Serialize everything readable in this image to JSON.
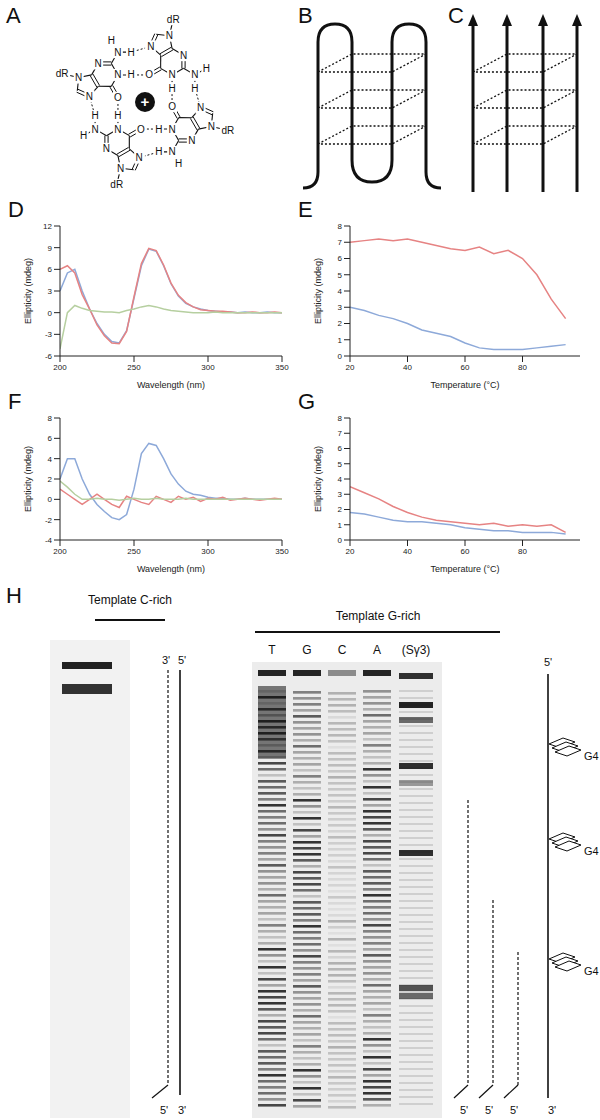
{
  "panels": {
    "A": {
      "label": "A",
      "quartet": {
        "base_atoms": [
          "N",
          "N",
          "N",
          "N",
          "O",
          "N",
          "H",
          "H",
          "H",
          "dR"
        ],
        "cation": "+"
      }
    },
    "B": {
      "label": "B"
    },
    "C": {
      "label": "C"
    },
    "H": {
      "label": "H",
      "c_rich": {
        "title": "Template C-rich",
        "top_labels": [
          "3'",
          "5'"
        ],
        "bottom_labels": [
          "5'",
          "3'"
        ]
      },
      "g_rich": {
        "title": "Template G-rich",
        "lanes": [
          "T",
          "G",
          "C",
          "A",
          "(Sγ3)"
        ],
        "top_label": "5'",
        "bottom_labels": [
          "5'",
          "5'",
          "5'",
          "3'"
        ],
        "g4_labels": [
          "G4",
          "G4",
          "G4"
        ]
      }
    }
  },
  "chart_data": [
    {
      "panel_label": "D",
      "type": "line",
      "x_label": "Wavelength (nm)",
      "y_label": "Ellipticity (mdeg)",
      "x": [
        200,
        205,
        210,
        215,
        220,
        225,
        230,
        235,
        240,
        245,
        250,
        255,
        260,
        265,
        270,
        275,
        280,
        285,
        290,
        295,
        300,
        305,
        310,
        315,
        320,
        325,
        330,
        335,
        340,
        345,
        350
      ],
      "series": [
        {
          "color": "#8da9d9",
          "values": [
            3,
            5.5,
            6,
            3,
            0.5,
            -1.5,
            -3,
            -4,
            -4.2,
            -2.5,
            2,
            6.5,
            8.8,
            8.5,
            6.5,
            4,
            2.3,
            1.3,
            0.8,
            0.5,
            0.3,
            0.2,
            0.1,
            0.1,
            0,
            0.1,
            0,
            0,
            0.1,
            0,
            0
          ]
        },
        {
          "color": "#e68383",
          "values": [
            6,
            6.5,
            5.5,
            2.5,
            0.5,
            -1.7,
            -3.2,
            -4.2,
            -4.3,
            -2.6,
            2.2,
            6.8,
            8.9,
            8.6,
            6.6,
            4.1,
            2.4,
            1.4,
            0.8,
            0.4,
            0.3,
            0.2,
            0.2,
            0.1,
            0,
            0,
            0.1,
            0,
            0,
            0.1,
            0
          ]
        },
        {
          "color": "#b6cfa0",
          "values": [
            -5,
            0,
            1,
            0.6,
            0.3,
            0.2,
            0.1,
            0.1,
            0,
            0.3,
            0.5,
            0.8,
            1,
            0.8,
            0.5,
            0.3,
            0.2,
            0.1,
            0,
            0,
            0,
            0.1,
            0,
            0,
            0,
            0,
            0,
            0,
            0,
            0,
            0
          ]
        }
      ],
      "xlim": [
        200,
        350
      ],
      "xticks": [
        200,
        250,
        300,
        350
      ],
      "ylim": [
        -6,
        12
      ],
      "yticks": [
        -6,
        -3,
        0,
        3,
        6,
        9,
        12
      ],
      "grid": false
    },
    {
      "panel_label": "E",
      "type": "line",
      "x_label": "Temperature (°C)",
      "y_label": "Ellipticity (mdeg)",
      "x": [
        20,
        25,
        30,
        35,
        40,
        45,
        50,
        55,
        60,
        65,
        70,
        75,
        80,
        85,
        90,
        95
      ],
      "series": [
        {
          "color": "#e68383",
          "values": [
            7,
            7.1,
            7.2,
            7.1,
            7.2,
            7,
            6.8,
            6.6,
            6.5,
            6.7,
            6.3,
            6.5,
            6,
            5,
            3.5,
            2.3
          ]
        },
        {
          "color": "#8da9d9",
          "values": [
            3,
            2.8,
            2.5,
            2.3,
            2,
            1.6,
            1.4,
            1.2,
            0.8,
            0.5,
            0.4,
            0.4,
            0.4,
            0.5,
            0.6,
            0.7
          ]
        }
      ],
      "xlim": [
        20,
        100
      ],
      "xticks": [
        20,
        40,
        60,
        80
      ],
      "ylim": [
        0,
        8
      ],
      "yticks": [
        0,
        1,
        2,
        3,
        4,
        5,
        6,
        7,
        8
      ],
      "grid": false
    },
    {
      "panel_label": "F",
      "type": "line",
      "x_label": "Wavelength (nm)",
      "y_label": "Ellipticity (mdeg)",
      "x": [
        200,
        205,
        210,
        215,
        220,
        225,
        230,
        235,
        240,
        245,
        250,
        255,
        260,
        265,
        270,
        275,
        280,
        285,
        290,
        295,
        300,
        305,
        310,
        315,
        320,
        325,
        330,
        335,
        340,
        345,
        350
      ],
      "series": [
        {
          "color": "#8da9d9",
          "values": [
            2,
            4,
            4,
            2,
            0.5,
            -0.5,
            -1.2,
            -1.8,
            -2,
            -1.5,
            1,
            4.5,
            5.5,
            5.3,
            4,
            2.5,
            1.5,
            0.8,
            0.5,
            0.4,
            0.2,
            0.1,
            0.1,
            0,
            0,
            0.1,
            0,
            0,
            0,
            0,
            0
          ]
        },
        {
          "color": "#e68383",
          "values": [
            1,
            0.5,
            0,
            -0.5,
            0,
            0.5,
            0,
            -0.5,
            -0.8,
            0.3,
            0,
            -0.3,
            -0.5,
            0.3,
            0,
            -0.3,
            0.3,
            0,
            0.2,
            -0.2,
            0.1,
            0,
            0.2,
            -0.1,
            0,
            0.1,
            0,
            -0.1,
            0,
            0.1,
            0
          ]
        },
        {
          "color": "#b6cfa0",
          "values": [
            1.8,
            1.2,
            0.5,
            0,
            0,
            0.1,
            0,
            0,
            -0.1,
            0,
            0.1,
            0,
            0,
            0.1,
            0,
            0,
            0,
            0.1,
            0,
            0,
            0,
            0,
            0,
            0,
            0,
            0,
            0,
            0,
            0,
            0,
            0
          ]
        }
      ],
      "xlim": [
        200,
        350
      ],
      "xticks": [
        200,
        250,
        300,
        350
      ],
      "ylim": [
        -4,
        8
      ],
      "yticks": [
        -4,
        -2,
        0,
        2,
        4,
        6,
        8
      ],
      "grid": false
    },
    {
      "panel_label": "G",
      "type": "line",
      "x_label": "Temperature (°C)",
      "y_label": "Ellipticity (mdeg)",
      "x": [
        20,
        25,
        30,
        35,
        40,
        45,
        50,
        55,
        60,
        65,
        70,
        75,
        80,
        85,
        90,
        95
      ],
      "series": [
        {
          "color": "#e68383",
          "values": [
            3.5,
            3.1,
            2.7,
            2.2,
            1.8,
            1.5,
            1.3,
            1.2,
            1.1,
            1,
            1.1,
            0.9,
            1,
            0.9,
            1,
            0.5
          ]
        },
        {
          "color": "#8da9d9",
          "values": [
            1.8,
            1.7,
            1.5,
            1.3,
            1.2,
            1.2,
            1.1,
            1,
            0.8,
            0.7,
            0.6,
            0.6,
            0.5,
            0.5,
            0.5,
            0.4
          ]
        }
      ],
      "xlim": [
        20,
        100
      ],
      "xticks": [
        20,
        40,
        60,
        80
      ],
      "ylim": [
        0,
        8
      ],
      "yticks": [
        0,
        1,
        2,
        3,
        4,
        5,
        6,
        7,
        8
      ],
      "grid": false
    }
  ]
}
